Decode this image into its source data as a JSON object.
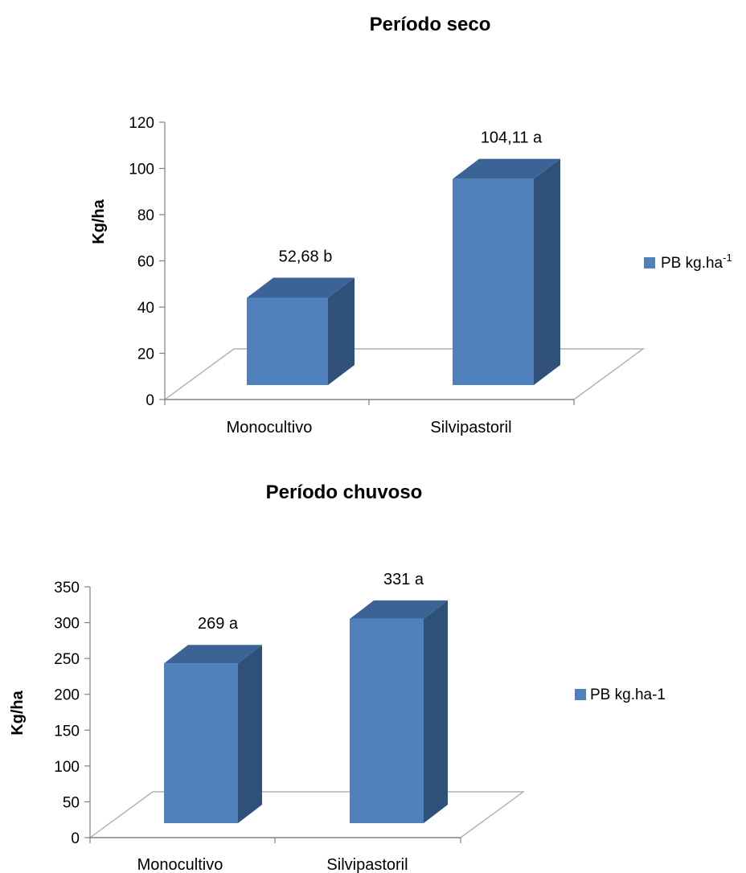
{
  "chart_data": [
    {
      "type": "bar",
      "title": "Período seco",
      "ylabel": "Kg/ha",
      "xlabel": "",
      "categories": [
        "Monocultivo",
        "Silvipastoril"
      ],
      "series": [
        {
          "name": "PB kg.ha-1",
          "values": [
            52.68,
            104.11
          ],
          "data_labels": [
            "52,68 b",
            "104,11 a"
          ]
        }
      ],
      "ylim": [
        0,
        120
      ],
      "yticks": [
        "0",
        "20",
        "40",
        "60",
        "80",
        "100",
        "120"
      ],
      "legend": {
        "text": "PB kg.ha",
        "superscript": "-1",
        "position": "right"
      },
      "grid": false,
      "bar_color": "#4F81BD"
    },
    {
      "type": "bar",
      "title": "Período chuvoso",
      "ylabel": "Kg/ha",
      "xlabel": "",
      "categories": [
        "Monocultivo",
        "Silvipastoril"
      ],
      "series": [
        {
          "name": "PB kg.ha-1",
          "values": [
            269,
            331
          ],
          "data_labels": [
            "269 a",
            "331 a"
          ]
        }
      ],
      "ylim": [
        0,
        350
      ],
      "yticks": [
        "0",
        "50",
        "100",
        "150",
        "200",
        "250",
        "300",
        "350"
      ],
      "legend": {
        "text": "PB kg.ha-1",
        "superscript": "",
        "position": "right"
      },
      "grid": false,
      "bar_color": "#4F81BD"
    }
  ]
}
